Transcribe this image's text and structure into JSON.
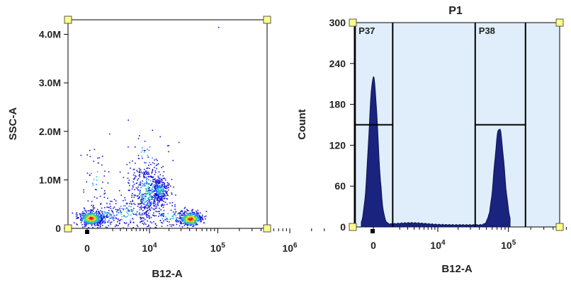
{
  "chart_data": [
    {
      "type": "scatter",
      "title": "",
      "xlabel": "B12-A",
      "ylabel": "SSC-A",
      "x_scale": "biexponential",
      "x_tick_labels": [
        "0",
        "10^4",
        "10^5",
        "10^6"
      ],
      "x_ticks": [
        0,
        10000,
        100000,
        1000000
      ],
      "y_tick_labels": [
        "0",
        "1.0M",
        "2.0M",
        "3.0M",
        "4.0M"
      ],
      "y_ticks": [
        0,
        1000000,
        2000000,
        3000000,
        4000000
      ],
      "ylim": [
        0,
        4300000
      ],
      "grid": false,
      "density_colormap": [
        "#1616d6",
        "#2a7fff",
        "#22c9c9",
        "#4cd94c",
        "#f2e230",
        "#f58a1f",
        "#e01b1b"
      ],
      "populations": [
        {
          "x_center": 0,
          "y_center": 220000,
          "density": "high"
        },
        {
          "x_center": 15000,
          "y_center": 700000,
          "density": "medium"
        },
        {
          "x_center": 75000,
          "y_center": 200000,
          "density": "high"
        }
      ]
    },
    {
      "type": "histogram",
      "title": "P1",
      "xlabel": "B12-A",
      "ylabel": "Count",
      "x_scale": "biexponential",
      "x_tick_labels": [
        "0",
        "10^4",
        "10^5",
        "10^6"
      ],
      "x_ticks": [
        0,
        10000,
        100000,
        1000000
      ],
      "y_tick_labels": [
        "0",
        "60",
        "120",
        "180",
        "240",
        "300"
      ],
      "y_ticks": [
        0,
        60,
        120,
        180,
        240,
        300
      ],
      "ylim": [
        0,
        300
      ],
      "fill_color": "#1a237e",
      "background_color": "#dfeefa",
      "grid": false,
      "peaks": [
        {
          "x_center": 0,
          "count": 220
        },
        {
          "x_center": 75000,
          "count": 145
        }
      ],
      "gates": [
        {
          "label": "P37",
          "x_start": -1200,
          "x_end": 1300,
          "marker_count": 150
        },
        {
          "label": "P38",
          "x_start": 35000,
          "x_end": 170000,
          "marker_count": 150
        }
      ]
    }
  ]
}
